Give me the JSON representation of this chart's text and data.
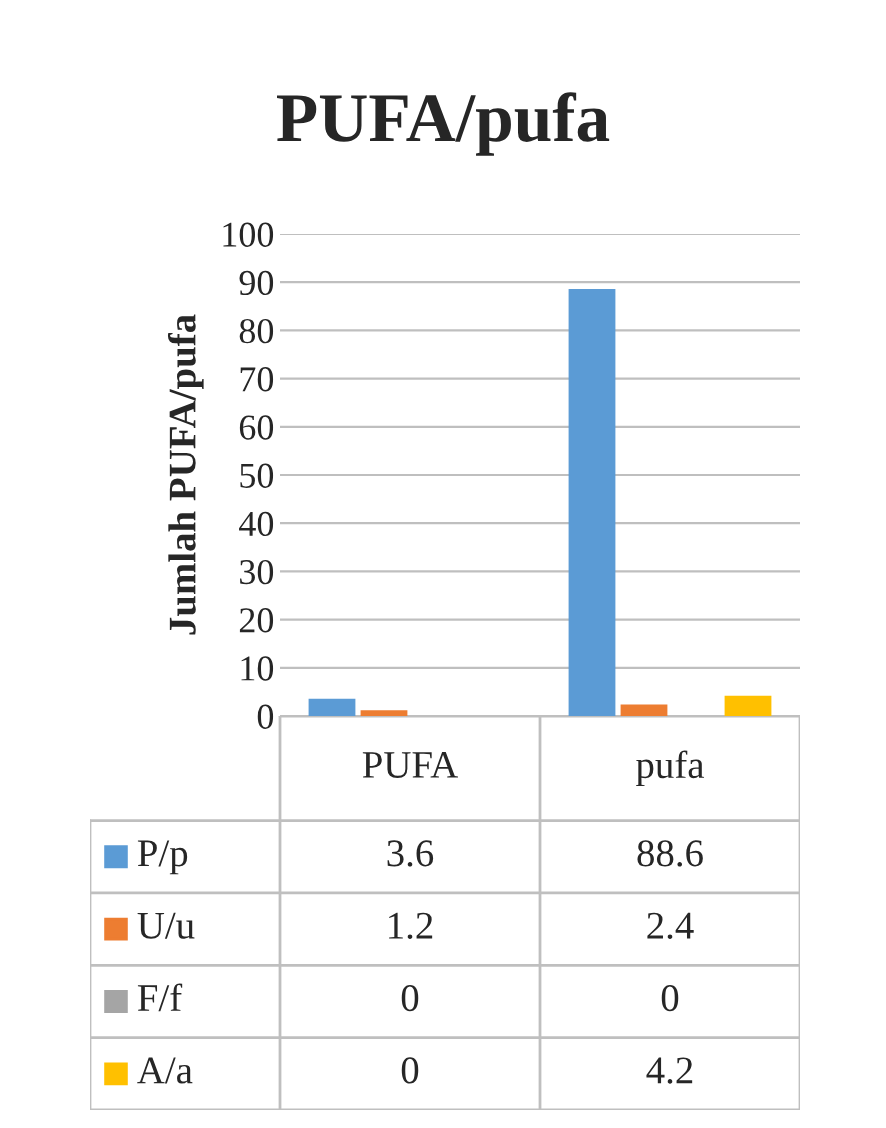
{
  "chart_data": {
    "type": "bar",
    "title": "PUFA/pufa",
    "ylabel": "Jumlah PUFA/pufa",
    "categories": [
      "PUFA",
      "pufa"
    ],
    "series": [
      {
        "name": "P/p",
        "color": "#5b9bd5",
        "values": [
          3.6,
          88.6
        ]
      },
      {
        "name": "U/u",
        "color": "#ed7d31",
        "values": [
          1.2,
          2.4
        ]
      },
      {
        "name": "F/f",
        "color": "#a5a5a5",
        "values": [
          0,
          0
        ]
      },
      {
        "name": "A/a",
        "color": "#ffc000",
        "values": [
          0,
          4.2
        ]
      }
    ],
    "ylim": [
      0,
      100
    ],
    "yticks": [
      0,
      10,
      20,
      30,
      40,
      50,
      60,
      70,
      80,
      90,
      100
    ],
    "grid": "y",
    "legend": "bottom",
    "data_labels": true
  }
}
